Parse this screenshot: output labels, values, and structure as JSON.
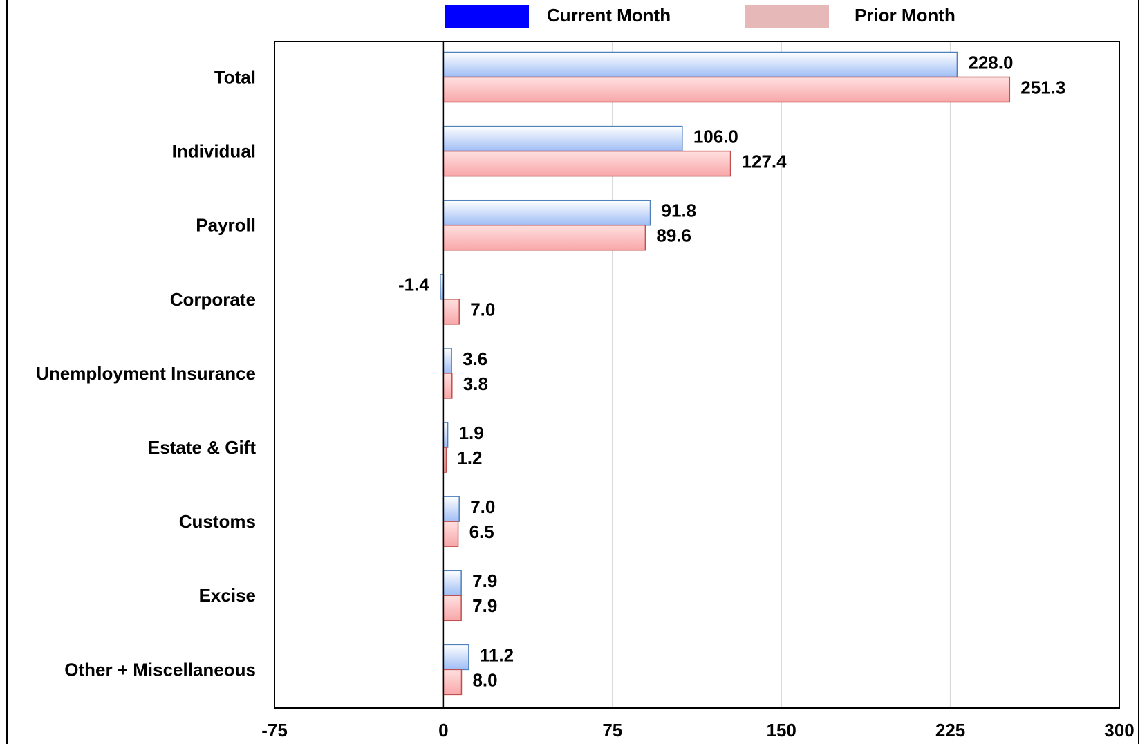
{
  "chart_data": {
    "type": "bar",
    "orientation": "horizontal",
    "categories": [
      "Total",
      "Individual",
      "Payroll",
      "Corporate",
      "Unemployment Insurance",
      "Estate & Gift",
      "Customs",
      "Excise",
      "Other + Miscellaneous"
    ],
    "series": [
      {
        "name": "Current Month",
        "color": "#0000ff",
        "values": [
          228.0,
          106.0,
          91.8,
          -1.4,
          3.6,
          1.9,
          7.0,
          7.9,
          11.2
        ],
        "value_labels": [
          "228.0",
          "106.0",
          "91.8",
          "-1.4",
          "3.6",
          "1.9",
          "7.0",
          "7.9",
          "11.2"
        ]
      },
      {
        "name": "Prior Month",
        "color": "#e6b8b7",
        "values": [
          251.3,
          127.4,
          89.6,
          7.0,
          3.8,
          1.2,
          6.5,
          7.9,
          8.0
        ],
        "value_labels": [
          "251.3",
          "127.4",
          "89.6",
          "7.0",
          "3.8",
          "1.2",
          "6.5",
          "7.9",
          "8.0"
        ]
      }
    ],
    "xlim": [
      -75,
      300
    ],
    "xticks": [
      -75,
      0,
      75,
      150,
      225,
      300
    ],
    "grid": true,
    "legend": "top"
  }
}
